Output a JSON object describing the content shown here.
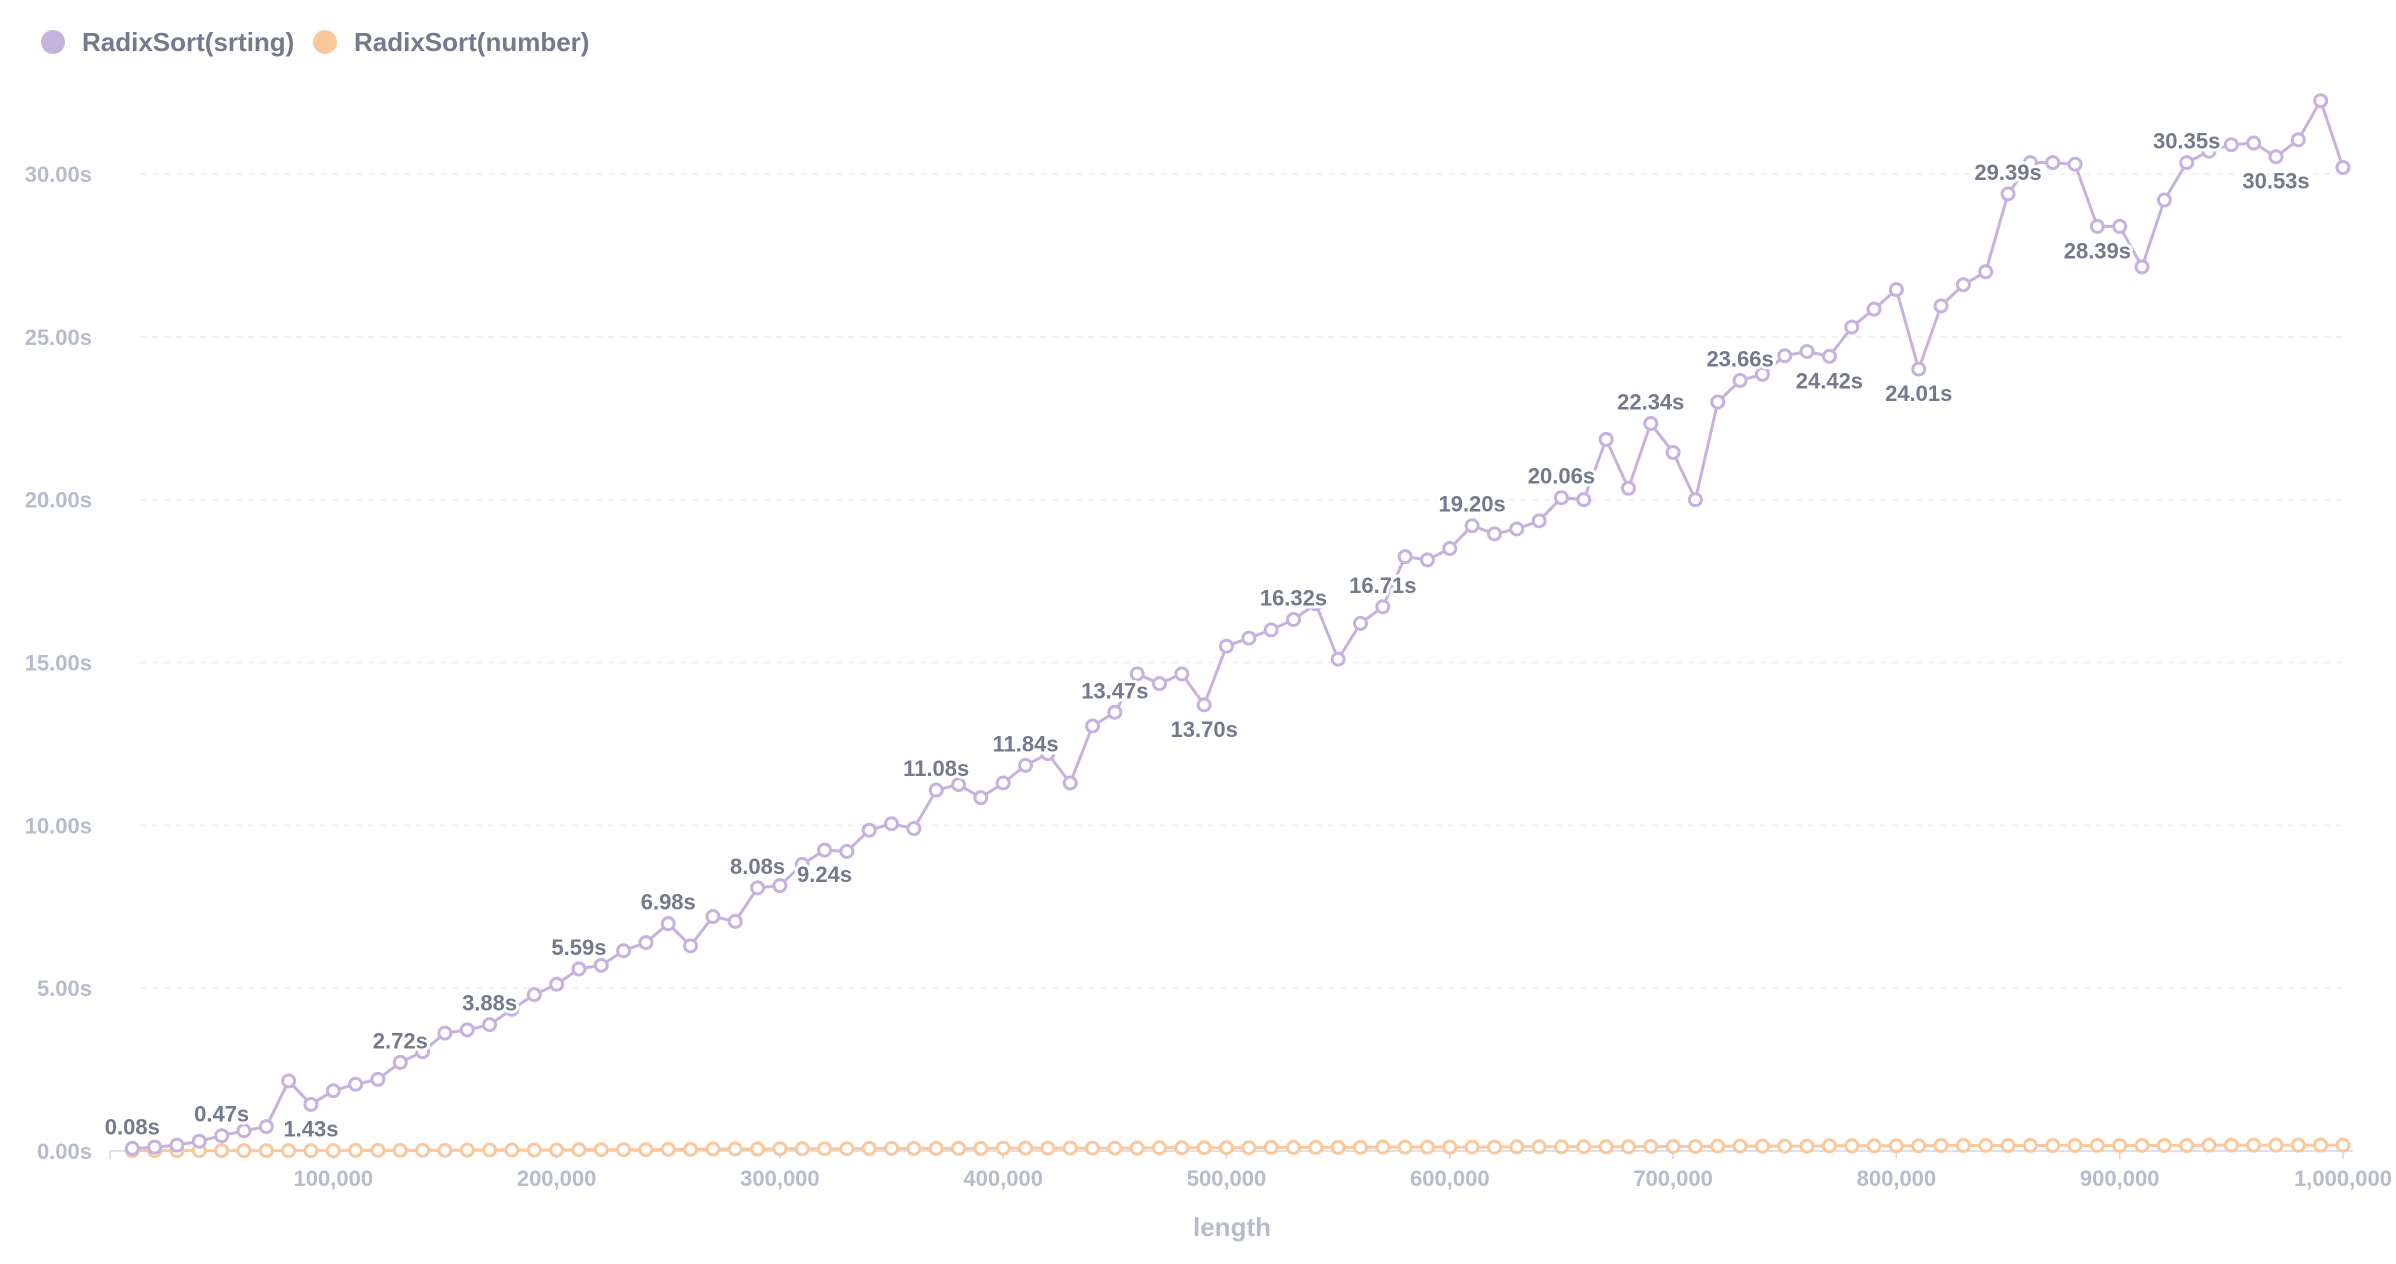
{
  "chart_data": {
    "type": "line",
    "xlabel": "length",
    "ylabel": "",
    "xlim": [
      0,
      1000000
    ],
    "ylim": [
      0,
      30
    ],
    "x_ticks": [
      "100,000",
      "200,000",
      "300,000",
      "400,000",
      "500,000",
      "600,000",
      "700,000",
      "800,000",
      "900,000",
      "1,000,000"
    ],
    "y_ticks": [
      "0.00s",
      "5.00s",
      "10.00s",
      "15.00s",
      "20.00s",
      "25.00s",
      "30.00s"
    ],
    "grid": "horizontal dashed",
    "legend_position": "top-left",
    "x": [
      10000,
      20000,
      30000,
      40000,
      50000,
      60000,
      70000,
      80000,
      90000,
      100000,
      110000,
      120000,
      130000,
      140000,
      150000,
      160000,
      170000,
      180000,
      190000,
      200000,
      210000,
      220000,
      230000,
      240000,
      250000,
      260000,
      270000,
      280000,
      290000,
      300000,
      310000,
      320000,
      330000,
      340000,
      350000,
      360000,
      370000,
      380000,
      390000,
      400000,
      410000,
      420000,
      430000,
      440000,
      450000,
      460000,
      470000,
      480000,
      490000,
      500000,
      510000,
      520000,
      530000,
      540000,
      550000,
      560000,
      570000,
      580000,
      590000,
      600000,
      610000,
      620000,
      630000,
      640000,
      650000,
      660000,
      670000,
      680000,
      690000,
      700000,
      710000,
      720000,
      730000,
      740000,
      750000,
      760000,
      770000,
      780000,
      790000,
      800000,
      810000,
      820000,
      830000,
      840000,
      850000,
      860000,
      870000,
      880000,
      890000,
      900000,
      910000,
      920000,
      930000,
      940000,
      950000,
      960000,
      970000,
      980000,
      990000,
      1000000
    ],
    "series": [
      {
        "name": "RadixSort(srting)",
        "color": "#c5b3de",
        "values": [
          0.08,
          0.12,
          0.18,
          0.3,
          0.47,
          0.62,
          0.75,
          2.15,
          1.43,
          1.85,
          2.05,
          2.2,
          2.72,
          3.05,
          3.62,
          3.72,
          3.88,
          4.35,
          4.8,
          5.12,
          5.59,
          5.7,
          6.15,
          6.4,
          6.98,
          6.3,
          7.2,
          7.05,
          8.08,
          8.15,
          8.8,
          9.24,
          9.2,
          9.85,
          10.05,
          9.9,
          11.08,
          11.25,
          10.85,
          11.3,
          11.84,
          12.2,
          11.3,
          13.05,
          13.47,
          14.65,
          14.35,
          14.65,
          13.7,
          15.5,
          15.75,
          16.0,
          16.32,
          16.8,
          15.1,
          16.2,
          16.71,
          18.25,
          18.15,
          18.5,
          19.2,
          18.95,
          19.1,
          19.35,
          20.06,
          20.0,
          21.85,
          20.35,
          22.34,
          21.45,
          20.0,
          23.0,
          23.66,
          23.85,
          24.42,
          24.55,
          24.4,
          25.3,
          25.85,
          26.45,
          24.01,
          25.95,
          26.6,
          27.0,
          29.39,
          30.35,
          30.35,
          30.3,
          28.39,
          28.39,
          27.15,
          29.2,
          30.35,
          30.7,
          30.9,
          30.95,
          30.53,
          31.05,
          32.25,
          30.2
        ],
        "labels": [
          {
            "index": 0,
            "text": "0.08s",
            "pos": "above"
          },
          {
            "index": 4,
            "text": "0.47s",
            "pos": "above"
          },
          {
            "index": 8,
            "text": "1.43s",
            "pos": "below"
          },
          {
            "index": 12,
            "text": "2.72s",
            "pos": "above"
          },
          {
            "index": 16,
            "text": "3.88s",
            "pos": "above"
          },
          {
            "index": 20,
            "text": "5.59s",
            "pos": "above"
          },
          {
            "index": 24,
            "text": "6.98s",
            "pos": "above"
          },
          {
            "index": 28,
            "text": "8.08s",
            "pos": "above"
          },
          {
            "index": 31,
            "text": "9.24s",
            "pos": "below"
          },
          {
            "index": 36,
            "text": "11.08s",
            "pos": "above"
          },
          {
            "index": 40,
            "text": "11.84s",
            "pos": "above"
          },
          {
            "index": 44,
            "text": "13.47s",
            "pos": "above"
          },
          {
            "index": 48,
            "text": "13.70s",
            "pos": "below"
          },
          {
            "index": 52,
            "text": "16.32s",
            "pos": "above"
          },
          {
            "index": 56,
            "text": "16.71s",
            "pos": "above"
          },
          {
            "index": 60,
            "text": "19.20s",
            "pos": "above"
          },
          {
            "index": 64,
            "text": "20.06s",
            "pos": "above"
          },
          {
            "index": 68,
            "text": "22.34s",
            "pos": "above"
          },
          {
            "index": 72,
            "text": "23.66s",
            "pos": "above"
          },
          {
            "index": 76,
            "text": "24.42s",
            "pos": "below"
          },
          {
            "index": 80,
            "text": "24.01s",
            "pos": "below"
          },
          {
            "index": 84,
            "text": "29.39s",
            "pos": "above"
          },
          {
            "index": 88,
            "text": "28.39s",
            "pos": "below"
          },
          {
            "index": 92,
            "text": "30.35s",
            "pos": "above"
          },
          {
            "index": 96,
            "text": "30.53s",
            "pos": "below"
          }
        ]
      },
      {
        "name": "RadixSort(number)",
        "color": "#f9c89d",
        "values": [
          0.01,
          0.01,
          0.01,
          0.01,
          0.01,
          0.01,
          0.01,
          0.01,
          0.01,
          0.01,
          0.02,
          0.02,
          0.02,
          0.02,
          0.02,
          0.03,
          0.03,
          0.03,
          0.03,
          0.03,
          0.04,
          0.04,
          0.04,
          0.04,
          0.05,
          0.05,
          0.06,
          0.06,
          0.06,
          0.07,
          0.07,
          0.07,
          0.07,
          0.08,
          0.08,
          0.08,
          0.08,
          0.08,
          0.08,
          0.09,
          0.09,
          0.09,
          0.09,
          0.09,
          0.09,
          0.09,
          0.1,
          0.1,
          0.1,
          0.1,
          0.1,
          0.11,
          0.11,
          0.11,
          0.11,
          0.11,
          0.12,
          0.12,
          0.12,
          0.12,
          0.12,
          0.12,
          0.13,
          0.13,
          0.13,
          0.13,
          0.13,
          0.13,
          0.14,
          0.14,
          0.14,
          0.15,
          0.15,
          0.15,
          0.15,
          0.15,
          0.16,
          0.16,
          0.16,
          0.16,
          0.16,
          0.17,
          0.17,
          0.17,
          0.17,
          0.17,
          0.17,
          0.17,
          0.17,
          0.17,
          0.17,
          0.17,
          0.17,
          0.18,
          0.18,
          0.18,
          0.18,
          0.18,
          0.18,
          0.18
        ]
      }
    ]
  }
}
